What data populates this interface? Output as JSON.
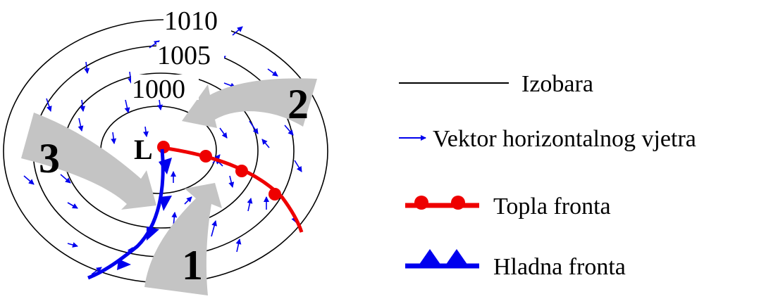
{
  "isobars": [
    {
      "label": "1010"
    },
    {
      "label": "1005"
    },
    {
      "label": "1000"
    },
    {
      "label": ""
    }
  ],
  "low_label": "L",
  "airflow_arrows": [
    {
      "label": "1"
    },
    {
      "label": "2"
    },
    {
      "label": "3"
    }
  ],
  "legend": [
    {
      "key": "isobar",
      "label": "Izobara"
    },
    {
      "key": "wind",
      "label": "Vektor horizontalnog vjetra"
    },
    {
      "key": "warm",
      "label": "Topla fronta"
    },
    {
      "key": "cold",
      "label": "Hladna fronta"
    }
  ],
  "colors": {
    "isobar": "#000000",
    "wind": "#0000ee",
    "warm_front": "#ee0000",
    "cold_front": "#0000ee",
    "airflow": "#c4c4c4"
  }
}
